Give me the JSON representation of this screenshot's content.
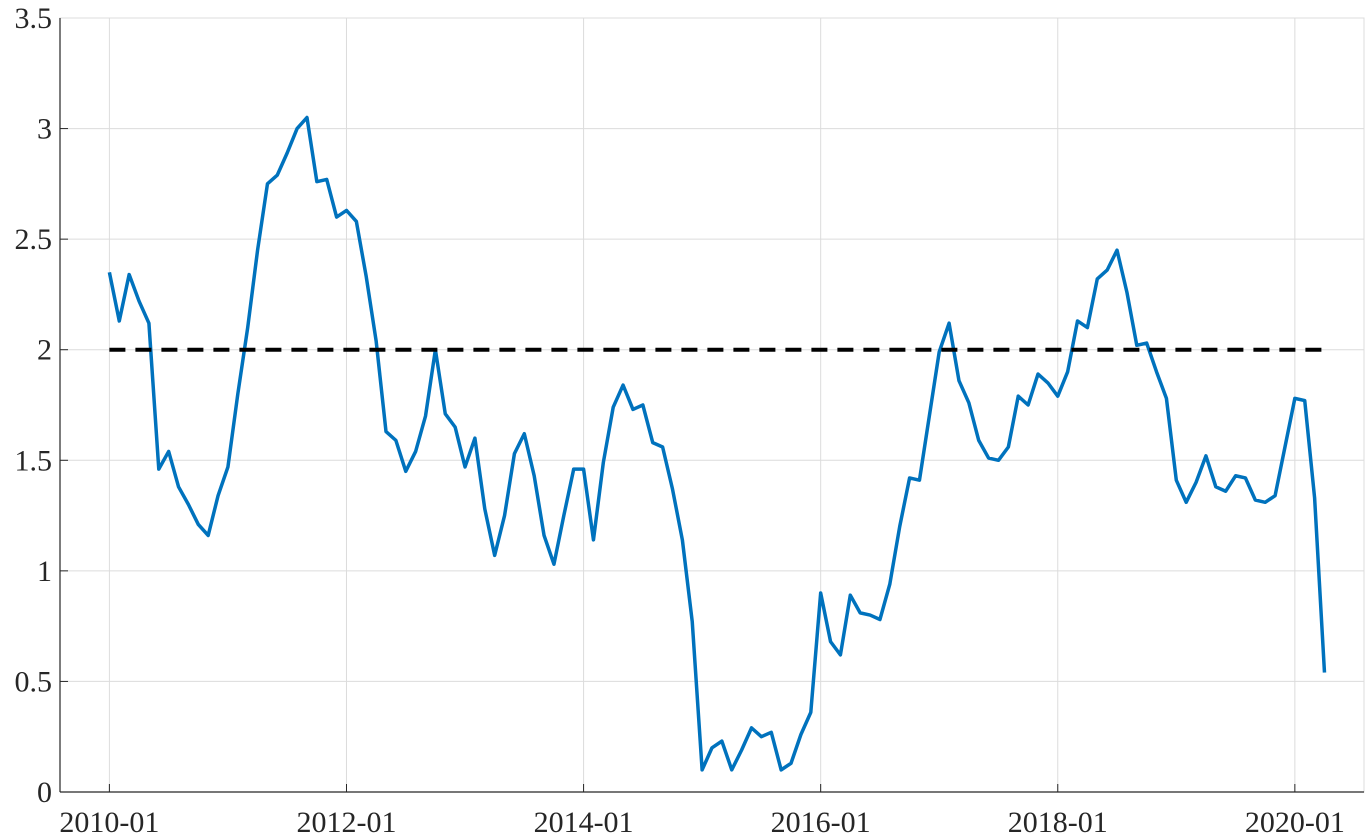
{
  "chart_data": {
    "type": "line",
    "xlim": [
      "2009-08",
      "2020-08"
    ],
    "xticks": [
      "2010-01",
      "2012-01",
      "2014-01",
      "2016-01",
      "2018-01",
      "2020-01"
    ],
    "ylim": [
      0,
      3.5
    ],
    "yticks": [
      0,
      0.5,
      1,
      1.5,
      2,
      2.5,
      3,
      3.5
    ],
    "grid": true,
    "series": [
      {
        "color": "#0072bd",
        "dash": false,
        "x": [
          "2010-01",
          "2010-02",
          "2010-03",
          "2010-04",
          "2010-05",
          "2010-06",
          "2010-07",
          "2010-08",
          "2010-09",
          "2010-10",
          "2010-11",
          "2010-12",
          "2011-01",
          "2011-02",
          "2011-03",
          "2011-04",
          "2011-05",
          "2011-06",
          "2011-07",
          "2011-08",
          "2011-09",
          "2011-10",
          "2011-11",
          "2011-12",
          "2012-01",
          "2012-02",
          "2012-03",
          "2012-04",
          "2012-05",
          "2012-06",
          "2012-07",
          "2012-08",
          "2012-09",
          "2012-10",
          "2012-11",
          "2012-12",
          "2013-01",
          "2013-02",
          "2013-03",
          "2013-04",
          "2013-05",
          "2013-06",
          "2013-07",
          "2013-08",
          "2013-09",
          "2013-10",
          "2013-11",
          "2013-12",
          "2014-01",
          "2014-02",
          "2014-03",
          "2014-04",
          "2014-05",
          "2014-06",
          "2014-07",
          "2014-08",
          "2014-09",
          "2014-10",
          "2014-11",
          "2014-12",
          "2015-01",
          "2015-02",
          "2015-03",
          "2015-04",
          "2015-05",
          "2015-06",
          "2015-07",
          "2015-08",
          "2015-09",
          "2015-10",
          "2015-11",
          "2015-12",
          "2016-01",
          "2016-02",
          "2016-03",
          "2016-04",
          "2016-05",
          "2016-06",
          "2016-07",
          "2016-08",
          "2016-09",
          "2016-10",
          "2016-11",
          "2016-12",
          "2017-01",
          "2017-02",
          "2017-03",
          "2017-04",
          "2017-05",
          "2017-06",
          "2017-07",
          "2017-08",
          "2017-09",
          "2017-10",
          "2017-11",
          "2017-12",
          "2018-01",
          "2018-02",
          "2018-03",
          "2018-04",
          "2018-05",
          "2018-06",
          "2018-07",
          "2018-08",
          "2018-09",
          "2018-10",
          "2018-11",
          "2018-12",
          "2019-01",
          "2019-02",
          "2019-03",
          "2019-04",
          "2019-05",
          "2019-06",
          "2019-07",
          "2019-08",
          "2019-09",
          "2019-10",
          "2019-11",
          "2019-12",
          "2020-01",
          "2020-02",
          "2020-03",
          "2020-04"
        ],
        "values": [
          2.35,
          2.13,
          2.34,
          2.22,
          2.12,
          1.46,
          1.54,
          1.38,
          1.3,
          1.21,
          1.16,
          1.34,
          1.47,
          1.8,
          2.1,
          2.45,
          2.75,
          2.79,
          2.89,
          3.0,
          3.05,
          2.76,
          2.77,
          2.6,
          2.63,
          2.58,
          2.33,
          2.04,
          1.63,
          1.59,
          1.45,
          1.54,
          1.7,
          2.0,
          1.71,
          1.65,
          1.47,
          1.6,
          1.28,
          1.07,
          1.25,
          1.53,
          1.62,
          1.43,
          1.16,
          1.03,
          1.25,
          1.46,
          1.46,
          1.14,
          1.49,
          1.74,
          1.84,
          1.73,
          1.75,
          1.58,
          1.56,
          1.37,
          1.14,
          0.77,
          0.1,
          0.2,
          0.23,
          0.1,
          0.19,
          0.29,
          0.25,
          0.27,
          0.1,
          0.13,
          0.26,
          0.36,
          0.9,
          0.68,
          0.62,
          0.89,
          0.81,
          0.8,
          0.78,
          0.94,
          1.2,
          1.42,
          1.41,
          1.7,
          1.99,
          2.12,
          1.86,
          1.76,
          1.59,
          1.51,
          1.5,
          1.56,
          1.79,
          1.75,
          1.89,
          1.85,
          1.79,
          1.9,
          2.13,
          2.1,
          2.32,
          2.36,
          2.45,
          2.26,
          2.02,
          2.03,
          1.9,
          1.78,
          1.41,
          1.31,
          1.4,
          1.52,
          1.38,
          1.36,
          1.43,
          1.42,
          1.32,
          1.31,
          1.34,
          1.56,
          1.78,
          1.77,
          1.33,
          0.54
        ]
      },
      {
        "color": "#000000",
        "dash": true,
        "x": [
          "2010-01",
          "2020-04"
        ],
        "values": [
          2,
          2
        ]
      }
    ]
  }
}
